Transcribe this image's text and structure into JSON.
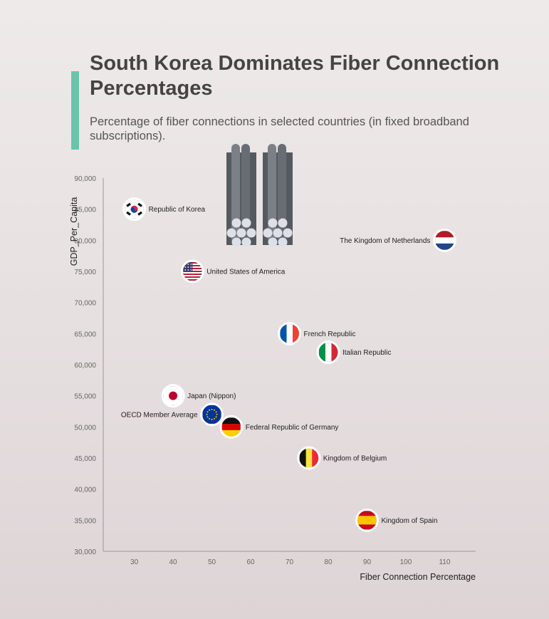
{
  "header": {
    "title": "South Korea Dominates Fiber Connection Percentages",
    "subtitle": "Percentage of fiber connections in selected countries (in fixed broadband subscriptions)."
  },
  "colors": {
    "accent": "#66c5ab",
    "axis": "#999999",
    "cable": "#555a60"
  },
  "chart_data": {
    "type": "scatter",
    "xlabel": "Fiber Connection Percentage",
    "ylabel": "GDP_Per_Capita",
    "xlim": [
      22,
      118
    ],
    "ylim": [
      30000,
      90000
    ],
    "x_ticks": [
      30,
      40,
      50,
      60,
      70,
      80,
      90,
      100,
      110
    ],
    "y_ticks": [
      30000,
      35000,
      40000,
      45000,
      50000,
      55000,
      60000,
      65000,
      70000,
      75000,
      80000,
      85000,
      90000
    ],
    "y_tick_labels": [
      "30,000",
      "35,000",
      "40,000",
      "45,000",
      "50,000",
      "55,000",
      "60,000",
      "65,000",
      "70,000",
      "75,000",
      "80,000",
      "85,000",
      "90,000"
    ],
    "grid": false,
    "points": [
      {
        "label": "Republic of Korea",
        "x": 30,
        "y": 85000,
        "flag": "korea",
        "label_side": "right"
      },
      {
        "label": "The Kingdom of Netherlands",
        "x": 110,
        "y": 80000,
        "flag": "netherlands",
        "label_side": "left"
      },
      {
        "label": "United States of America",
        "x": 45,
        "y": 75000,
        "flag": "usa",
        "label_side": "right"
      },
      {
        "label": "French Republic",
        "x": 70,
        "y": 65000,
        "flag": "france",
        "label_side": "right"
      },
      {
        "label": "Italian Republic",
        "x": 80,
        "y": 62000,
        "flag": "italy",
        "label_side": "right"
      },
      {
        "label": "Japan (Nippon)",
        "x": 40,
        "y": 55000,
        "flag": "japan",
        "label_side": "right"
      },
      {
        "label": "OECD Member Average",
        "x": 50,
        "y": 52000,
        "flag": "eu",
        "label_side": "left"
      },
      {
        "label": "Federal Republic of Germany",
        "x": 55,
        "y": 50000,
        "flag": "germany",
        "label_side": "right"
      },
      {
        "label": "Kingdom of Belgium",
        "x": 75,
        "y": 45000,
        "flag": "belgium",
        "label_side": "right"
      },
      {
        "label": "Kingdom of Spain",
        "x": 90,
        "y": 35000,
        "flag": "spain",
        "label_side": "right"
      }
    ]
  }
}
